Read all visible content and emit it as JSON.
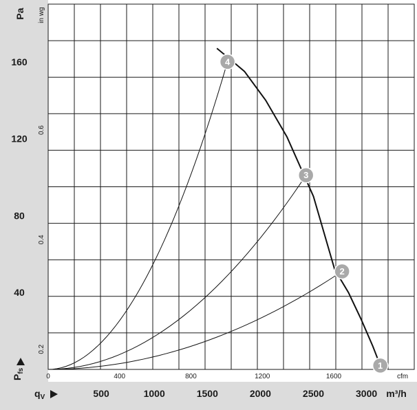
{
  "chart_data": {
    "type": "line",
    "title": "",
    "left_axis": {
      "unit": "Pa",
      "ticks": [
        40,
        80,
        120,
        160
      ],
      "range": [
        0,
        190
      ]
    },
    "inner_left_axis": {
      "unit": "in wg",
      "ticks": [
        "0.2",
        "0.4",
        "0.6"
      ]
    },
    "x_axis": {
      "unit": "m³/h",
      "ticks": [
        500,
        1000,
        1500,
        2000,
        2500,
        3000
      ],
      "range": [
        0,
        3450
      ]
    },
    "inner_x_axis": {
      "unit": "cfm",
      "ticks": [
        "0",
        "400",
        "800",
        "1200",
        "1600"
      ]
    },
    "y_symbol": {
      "main": "P",
      "sub": "fs"
    },
    "x_symbol": {
      "main": "q",
      "sub": "V"
    },
    "fan_curve": {
      "x": [
        2700,
        2830,
        2950,
        3060,
        3130
      ],
      "y": [
        52,
        40,
        26,
        12,
        2
      ],
      "top_x": [
        1590,
        1700,
        1850,
        2050,
        2250,
        2500,
        2700
      ],
      "top_y": [
        167,
        162,
        155,
        140,
        121,
        90,
        52
      ]
    },
    "series": [
      {
        "label": "1",
        "point": [
          3130,
          2
        ],
        "curve_x": [
          0
        ],
        "curve_y": [
          0
        ]
      },
      {
        "label": "2",
        "point": [
          2770,
          51
        ],
        "curve_x": [
          0,
          500,
          1000,
          1500,
          2000,
          2500,
          2770
        ],
        "curve_y": [
          0,
          1.7,
          6.6,
          14.9,
          26.6,
          41.5,
          51
        ]
      },
      {
        "label": "3",
        "point": [
          2430,
          101
        ],
        "curve_x": [
          0,
          500,
          1000,
          1500,
          2000,
          2430
        ],
        "curve_y": [
          0,
          4.3,
          17.1,
          38.5,
          68.4,
          101
        ]
      },
      {
        "label": "4",
        "point": [
          1690,
          160
        ],
        "curve_x": [
          0,
          400,
          800,
          1200,
          1500,
          1690
        ],
        "curve_y": [
          0,
          9,
          35.8,
          80.7,
          126,
          160
        ]
      }
    ]
  }
}
